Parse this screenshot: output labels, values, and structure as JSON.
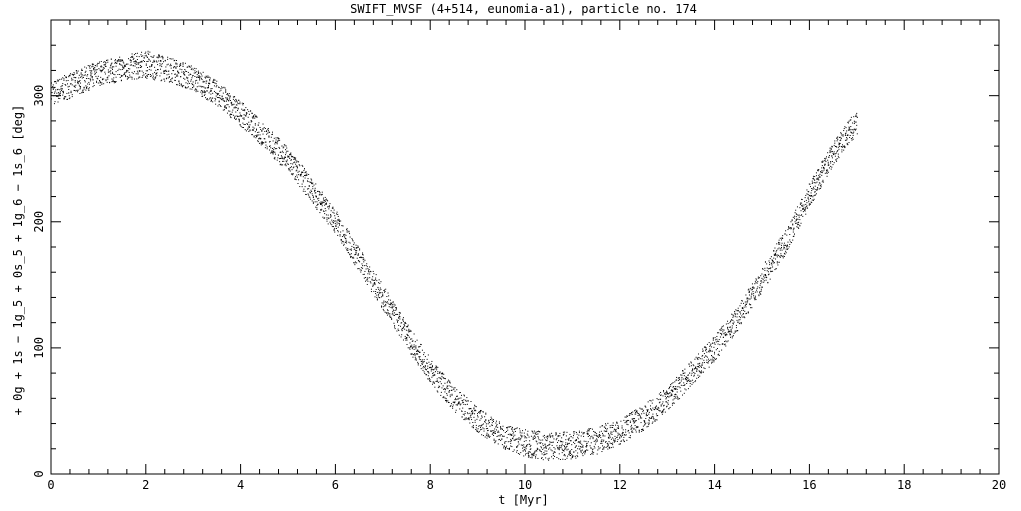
{
  "chart_data": {
    "type": "scatter",
    "title": "SWIFT_MVSF (4+514, eunomia-a1), particle no. 174",
    "xlabel": "t [Myr]",
    "ylabel": "+ 0g + 1s − 1g_5 + 0s_5 + 1g_6 − 1s_6 [deg]",
    "xlim": [
      0,
      20
    ],
    "ylim": [
      0,
      360
    ],
    "xticks": [
      0,
      2,
      4,
      6,
      8,
      10,
      12,
      14,
      16,
      18,
      20
    ],
    "yticks": [
      0,
      100,
      200,
      300
    ],
    "grid": false,
    "marker_color": "#000000",
    "series": [
      {
        "x": [
          0.0,
          0.5,
          1.0,
          1.5,
          2.0,
          2.5,
          3.0,
          3.5,
          4.0,
          4.5,
          5.0,
          5.5,
          6.0,
          6.5,
          7.0,
          7.5,
          8.0,
          8.5,
          9.0,
          9.5,
          10.0,
          10.5,
          11.0,
          11.5,
          12.0,
          12.5,
          13.0,
          13.5,
          14.0,
          14.5,
          15.0,
          15.5,
          16.0,
          16.5,
          17.0
        ],
        "y": [
          302,
          310,
          318,
          322,
          325,
          321,
          314,
          302,
          286,
          268,
          249,
          225,
          200,
          170,
          140,
          110,
          82,
          60,
          43,
          31,
          25,
          22,
          23,
          27,
          34,
          45,
          60,
          80,
          100,
          125,
          155,
          185,
          222,
          254,
          280
        ],
        "spread": [
          10,
          10,
          10,
          10,
          11,
          10,
          10,
          10,
          10,
          10,
          10,
          10,
          10,
          10,
          10,
          10,
          10,
          10,
          10,
          10,
          11,
          11,
          11,
          11,
          10,
          10,
          10,
          10,
          10,
          10,
          10,
          10,
          10,
          10,
          10
        ]
      }
    ]
  }
}
